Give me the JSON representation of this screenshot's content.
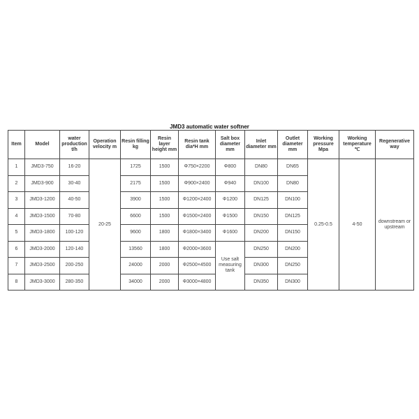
{
  "title": "JMD3 automatic water softner",
  "headers": [
    "Item",
    "Model",
    "water production t/h",
    "Operation velocity m",
    "Resin filling kg",
    "Resin layer height mm",
    "Resin tank dia*H mm",
    "Salt box diameter mm",
    "Inlet diameter mm",
    "Outlet diameter mm",
    "Working pressure Mpa",
    "Working temperature ℃",
    "Regenerative way"
  ],
  "rows": [
    {
      "item": "1",
      "model": "JMD3-750",
      "production": "16-20",
      "filling": "1725",
      "layer": "1500",
      "tank": "Φ750×2200",
      "salt": "Φ800",
      "inlet": "DN80",
      "outlet": "DN65"
    },
    {
      "item": "2",
      "model": "JMD3-900",
      "production": "30-40",
      "filling": "2175",
      "layer": "1500",
      "tank": "Φ900×2400",
      "salt": "Φ940",
      "inlet": "DN100",
      "outlet": "DN80"
    },
    {
      "item": "3",
      "model": "JMD3-1200",
      "production": "40-50",
      "filling": "3900",
      "layer": "1500",
      "tank": "Φ1200×2400",
      "salt": "Φ1200",
      "inlet": "DN125",
      "outlet": "DN100"
    },
    {
      "item": "4",
      "model": "JMD3-1500",
      "production": "70-80",
      "filling": "6600",
      "layer": "1500",
      "tank": "Φ1500×2400",
      "salt": "Φ1500",
      "inlet": "DN150",
      "outlet": "DN125"
    },
    {
      "item": "5",
      "model": "JMD3-1800",
      "production": "100-120",
      "filling": "9600",
      "layer": "1800",
      "tank": "Φ1800×3400",
      "salt": "Φ1600",
      "inlet": "DN200",
      "outlet": "DN150"
    },
    {
      "item": "6",
      "model": "JMD3-2000",
      "production": "120-140",
      "filling": "13560",
      "layer": "1800",
      "tank": "Φ2000×3600",
      "salt": "",
      "inlet": "DN250",
      "outlet": "DN200"
    },
    {
      "item": "7",
      "model": "JMD3-2500",
      "production": "200-250",
      "filling": "24000",
      "layer": "2000",
      "tank": "Φ2500×4500",
      "salt": "",
      "inlet": "DN300",
      "outlet": "DN250"
    },
    {
      "item": "8",
      "model": "JMD3-3000",
      "production": "280-350",
      "filling": "34000",
      "layer": "2000",
      "tank": "Φ3000×4800",
      "salt": "",
      "inlet": "DN350",
      "outlet": "DN300"
    }
  ],
  "merged": {
    "velocity": "20-25",
    "salt_large": "Use salt measuring tank",
    "pressure": "0.25-0.5",
    "temperature": "4-50",
    "regenerative": "downstream or upstream"
  }
}
